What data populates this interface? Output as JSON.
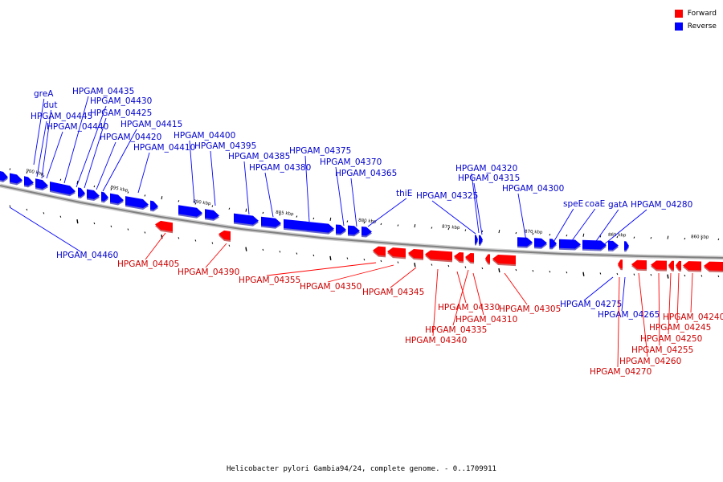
{
  "caption": "Helicobacter pylori Gambia94/24, complete genome. - 0..1709911",
  "legend": [
    {
      "label": "Forward",
      "color": "#ff0000"
    },
    {
      "label": "Reverse",
      "color": "#0000ff"
    }
  ],
  "colors": {
    "forward": "#ff0000",
    "reverse": "#0000ff",
    "forward_label": "#cc0000",
    "reverse_label": "#0000cc",
    "backbone": "#808080"
  },
  "scale_ticks": [
    "900 kbp",
    "895 kbp",
    "890 kbp",
    "885 kbp",
    "880 kbp",
    "875 kbp",
    "870 kbp",
    "865 kbp",
    "860 kbp"
  ],
  "labels": {
    "reverse": [
      "greA",
      "dut",
      "HPGAM_04445",
      "HPGAM_04440",
      "HPGAM_04435",
      "HPGAM_04430",
      "HPGAM_04425",
      "HPGAM_04420",
      "HPGAM_04415",
      "HPGAM_04410",
      "HPGAM_04400",
      "HPGAM_04395",
      "HPGAM_04385",
      "HPGAM_04380",
      "HPGAM_04375",
      "HPGAM_04370",
      "HPGAM_04365",
      "thiE",
      "HPGAM_04325",
      "HPGAM_04320",
      "HPGAM_04315",
      "HPGAM_04300",
      "speE",
      "coaE",
      "gatA",
      "HPGAM_04280",
      "HPGAM_04460",
      "HPGAM_04275",
      "HPGAM_04265"
    ],
    "forward": [
      "HPGAM_04405",
      "HPGAM_04390",
      "HPGAM_04355",
      "HPGAM_04350",
      "HPGAM_04345",
      "HPGAM_04330",
      "HPGAM_04310",
      "HPGAM_04305",
      "HPGAM_04335",
      "HPGAM_04340",
      "HPGAM_04240",
      "HPGAM_04245",
      "HPGAM_04250",
      "HPGAM_04255",
      "HPGAM_04260",
      "HPGAM_04270"
    ]
  }
}
